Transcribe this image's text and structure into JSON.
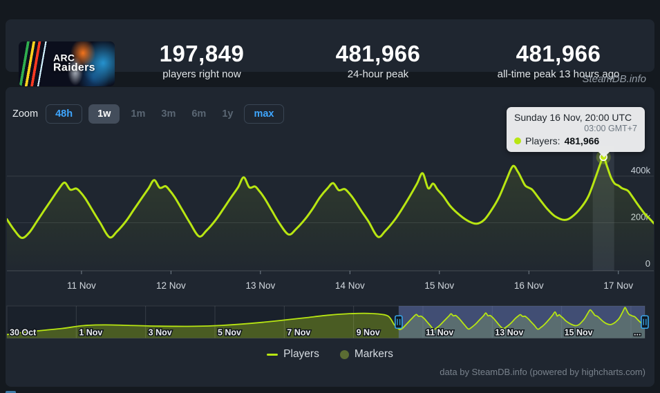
{
  "header": {
    "game_title": "ARC Raiders",
    "capsule_line1": "ARC",
    "capsule_line2": "Raiders",
    "stats": [
      {
        "value": "197,849",
        "label": "players right now"
      },
      {
        "value": "481,966",
        "label": "24-hour peak"
      },
      {
        "value": "481,966",
        "label": "all-time peak 13 hours ago"
      }
    ]
  },
  "watermark": "SteamDB.info",
  "zoom": {
    "label": "Zoom",
    "buttons": [
      {
        "label": "48h",
        "state": "outlined"
      },
      {
        "label": "1w",
        "state": "selected"
      },
      {
        "label": "1m",
        "state": "plain"
      },
      {
        "label": "3m",
        "state": "plain"
      },
      {
        "label": "6m",
        "state": "plain"
      },
      {
        "label": "1y",
        "state": "plain"
      },
      {
        "label": "max",
        "state": "outlined"
      }
    ]
  },
  "tooltip": {
    "title": "Sunday 16 Nov, 20:00 UTC",
    "subtitle": "03:00 GMT+7",
    "series_label": "Players:",
    "value": "481,966"
  },
  "legend": {
    "items": [
      {
        "label": "Players",
        "marker": "line",
        "color": "#b8e612"
      },
      {
        "label": "Markers",
        "marker": "circle",
        "color": "#5b6c33"
      }
    ]
  },
  "footer": "data by SteamDB.info (powered by highcharts.com)",
  "chart_data": {
    "type": "line",
    "title": "",
    "series_name": "Players",
    "values_unit": "thousands of concurrent players (hourly, UTC)",
    "x_unit": "hours since 10 Nov 00:00 UTC",
    "x_range_hours": [
      4,
      177.5
    ],
    "y_range": [
      0,
      520
    ],
    "grid": "horizontal",
    "legend_position": "bottom-center",
    "y_ticks": [
      {
        "v": 0,
        "label": "0"
      },
      {
        "v": 200,
        "label": "200k"
      },
      {
        "v": 400,
        "label": "400k"
      }
    ],
    "x_ticks": [
      {
        "h": 24,
        "label": "11 Nov"
      },
      {
        "h": 48,
        "label": "12 Nov"
      },
      {
        "h": 72,
        "label": "13 Nov"
      },
      {
        "h": 96,
        "label": "14 Nov"
      },
      {
        "h": 120,
        "label": "15 Nov"
      },
      {
        "h": 144,
        "label": "16 Nov"
      },
      {
        "h": 168,
        "label": "17 Nov"
      }
    ],
    "points": [
      [
        4,
        215
      ],
      [
        6,
        168
      ],
      [
        8,
        135
      ],
      [
        10,
        158
      ],
      [
        12,
        205
      ],
      [
        14,
        253
      ],
      [
        16,
        300
      ],
      [
        18,
        347
      ],
      [
        19.5,
        372
      ],
      [
        21,
        342
      ],
      [
        22.5,
        347
      ],
      [
        23.5,
        335
      ],
      [
        25,
        305
      ],
      [
        27,
        252
      ],
      [
        29,
        200
      ],
      [
        31.5,
        138
      ],
      [
        33.5,
        162
      ],
      [
        36,
        208
      ],
      [
        38,
        255
      ],
      [
        40,
        302
      ],
      [
        42,
        348
      ],
      [
        43.5,
        383
      ],
      [
        45,
        350
      ],
      [
        46.5,
        357
      ],
      [
        47.5,
        342
      ],
      [
        49,
        310
      ],
      [
        51,
        256
      ],
      [
        53,
        202
      ],
      [
        55.5,
        142
      ],
      [
        57.5,
        166
      ],
      [
        60,
        212
      ],
      [
        62,
        258
      ],
      [
        64,
        306
      ],
      [
        66,
        352
      ],
      [
        67.5,
        395
      ],
      [
        69,
        352
      ],
      [
        70.5,
        356
      ],
      [
        71.5,
        340
      ],
      [
        73,
        308
      ],
      [
        75,
        254
      ],
      [
        77,
        200
      ],
      [
        79.5,
        150
      ],
      [
        81.5,
        172
      ],
      [
        84,
        216
      ],
      [
        86,
        260
      ],
      [
        88,
        310
      ],
      [
        90,
        348
      ],
      [
        91.5,
        370
      ],
      [
        93,
        340
      ],
      [
        94.5,
        345
      ],
      [
        95.5,
        332
      ],
      [
        97,
        302
      ],
      [
        99,
        252
      ],
      [
        101,
        205
      ],
      [
        103.5,
        140
      ],
      [
        105.5,
        165
      ],
      [
        108,
        212
      ],
      [
        110,
        260
      ],
      [
        112,
        312
      ],
      [
        114,
        368
      ],
      [
        115.5,
        412
      ],
      [
        117,
        348
      ],
      [
        118.3,
        368
      ],
      [
        119.5,
        342
      ],
      [
        121,
        315
      ],
      [
        123,
        270
      ],
      [
        125.5,
        232
      ],
      [
        128,
        205
      ],
      [
        130,
        196
      ],
      [
        132,
        212
      ],
      [
        134,
        255
      ],
      [
        136,
        310
      ],
      [
        138,
        385
      ],
      [
        139.7,
        443
      ],
      [
        141,
        420
      ],
      [
        142,
        390
      ],
      [
        143,
        360
      ],
      [
        144,
        350
      ],
      [
        145,
        340
      ],
      [
        147,
        298
      ],
      [
        149,
        258
      ],
      [
        151,
        228
      ],
      [
        153.5,
        212
      ],
      [
        155.5,
        225
      ],
      [
        158,
        265
      ],
      [
        160,
        315
      ],
      [
        162,
        400
      ],
      [
        163.2,
        455
      ],
      [
        164,
        482
      ],
      [
        165,
        440
      ],
      [
        166,
        395
      ],
      [
        167,
        368
      ],
      [
        168,
        360
      ],
      [
        169,
        348
      ],
      [
        170.5,
        338
      ],
      [
        171.5,
        318
      ],
      [
        173,
        283
      ],
      [
        175,
        240
      ],
      [
        176.5,
        215
      ],
      [
        177.5,
        198
      ]
    ],
    "hover_point": {
      "h": 164,
      "v": 482,
      "value_label": "481,966"
    },
    "colors": {
      "line": "#b8e612",
      "marker_fill": "#c6ef15",
      "grid": "rgba(255,255,255,0.10)",
      "axis_label": "#ccd4dc",
      "hover_band": "rgba(195,210,222,0.10)",
      "nav_mask": "rgba(108,128,196,0.48)",
      "nav_handle": "#38a6ea"
    },
    "navigator": {
      "x_unit": "days since 30 Oct 00:00 UTC",
      "range_days": [
        0,
        18.4
      ],
      "selected_from_day": 11.3,
      "labels": [
        {
          "d": 0,
          "label": "30 Oct"
        },
        {
          "d": 2,
          "label": "1 Nov"
        },
        {
          "d": 4,
          "label": "3 Nov"
        },
        {
          "d": 6,
          "label": "5 Nov"
        },
        {
          "d": 8,
          "label": "7 Nov"
        },
        {
          "d": 10,
          "label": "9 Nov"
        },
        {
          "d": 12,
          "label": "11 Nov"
        },
        {
          "d": 14,
          "label": "13 Nov"
        },
        {
          "d": 16,
          "label": "15 Nov"
        }
      ],
      "gridline_days": [
        2,
        4,
        6,
        8,
        10,
        12,
        14,
        16,
        18
      ],
      "overflow_label": "...",
      "smooth_points": [
        [
          0,
          55
        ],
        [
          0.5,
          92
        ],
        [
          1.0,
          120
        ],
        [
          1.6,
          152
        ],
        [
          2.2,
          196
        ],
        [
          2.8,
          208
        ],
        [
          3.5,
          200
        ],
        [
          4.4,
          188
        ],
        [
          5.4,
          186
        ],
        [
          6.2,
          200
        ],
        [
          7.0,
          230
        ],
        [
          7.8,
          272
        ],
        [
          8.6,
          320
        ],
        [
          9.3,
          362
        ],
        [
          9.8,
          382
        ],
        [
          10.3,
          390
        ],
        [
          10.7,
          380
        ],
        [
          11.0,
          345
        ]
      ]
    }
  }
}
